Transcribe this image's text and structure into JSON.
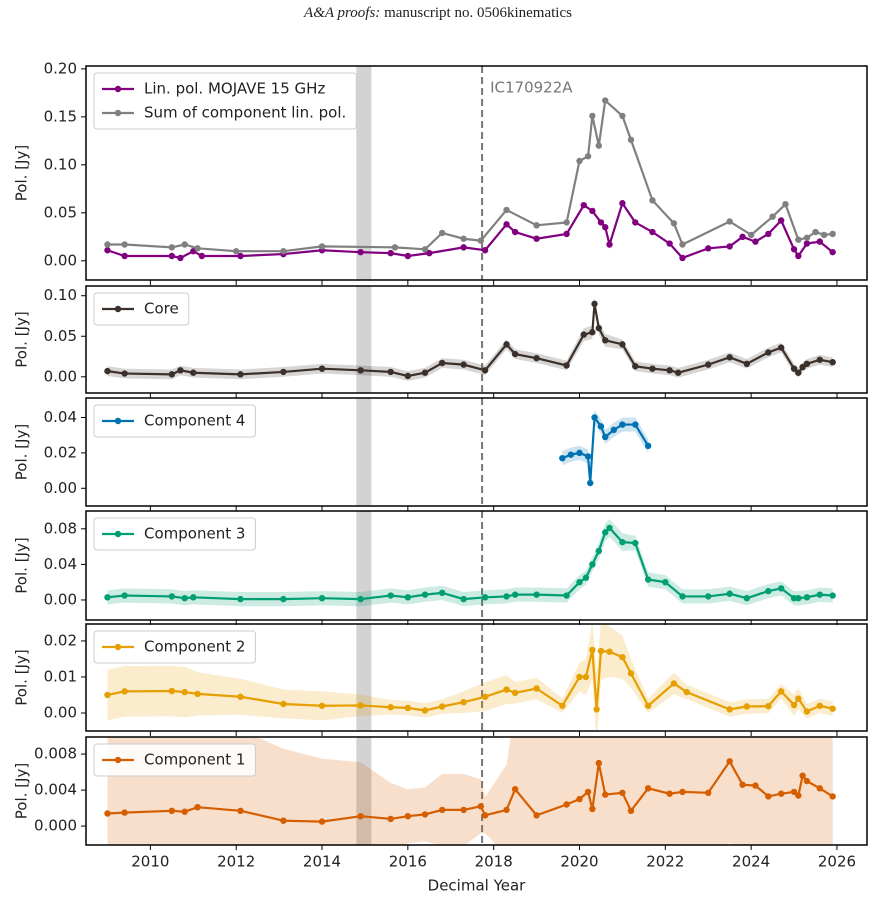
{
  "header": {
    "journal": "A&A proofs:",
    "text": "manuscript no. 0506kinematics"
  },
  "x_axis": {
    "label": "Decimal Year",
    "xlim": [
      2008.5,
      2026.7
    ],
    "xticks": [
      2010,
      2012,
      2014,
      2016,
      2018,
      2020,
      2022,
      2024,
      2026
    ],
    "span": [
      2014.8,
      2015.15
    ],
    "span_color": "#d3d3d3",
    "event": {
      "x": 2017.73,
      "label": "IC170922A",
      "color": "#777777"
    }
  },
  "chart_data": [
    {
      "type": "line",
      "ylabel": "Pol. [Jy]",
      "ylim": [
        -0.02,
        0.203
      ],
      "legend": "upper left",
      "yticks": [
        {
          "value": 0,
          "label": "0.00"
        },
        {
          "value": 0.05,
          "label": "0.05"
        },
        {
          "value": 0.1,
          "label": "0.10"
        },
        {
          "value": 0.15,
          "label": "0.15"
        },
        {
          "value": 0.2,
          "label": "0.20"
        }
      ],
      "series": [
        {
          "name": "Lin. pol. MOJAVE 15 GHz",
          "color": "#800080",
          "x": [
            2009.0,
            2009.4,
            2010.5,
            2010.7,
            2011.0,
            2011.2,
            2012.1,
            2013.1,
            2014.0,
            2014.9,
            2015.6,
            2016.0,
            2016.5,
            2017.3,
            2017.8,
            2018.3,
            2018.5,
            2019.0,
            2019.7,
            2020.1,
            2020.3,
            2020.5,
            2020.6,
            2020.7,
            2021.0,
            2021.3,
            2021.7,
            2022.1,
            2022.4,
            2023.0,
            2023.5,
            2023.8,
            2024.1,
            2024.4,
            2024.7,
            2025.0,
            2025.1,
            2025.3,
            2025.6,
            2025.9
          ],
          "values": [
            0.011,
            0.005,
            0.005,
            0.003,
            0.01,
            0.005,
            0.005,
            0.007,
            0.011,
            0.009,
            0.008,
            0.005,
            0.008,
            0.014,
            0.011,
            0.038,
            0.03,
            0.023,
            0.028,
            0.058,
            0.052,
            0.04,
            0.035,
            0.017,
            0.06,
            0.04,
            0.03,
            0.018,
            0.003,
            0.013,
            0.015,
            0.025,
            0.02,
            0.028,
            0.042,
            0.012,
            0.005,
            0.018,
            0.02,
            0.009
          ]
        },
        {
          "name": "Sum of component lin. pol.",
          "color": "#808080",
          "x": [
            2009.0,
            2009.4,
            2010.5,
            2010.8,
            2011.1,
            2012.0,
            2013.1,
            2014.0,
            2015.7,
            2016.4,
            2016.8,
            2017.3,
            2017.7,
            2018.3,
            2019.0,
            2019.7,
            2020.0,
            2020.2,
            2020.3,
            2020.45,
            2020.6,
            2021.0,
            2021.2,
            2021.7,
            2022.2,
            2022.4,
            2023.5,
            2024.0,
            2024.5,
            2024.8,
            2025.1,
            2025.3,
            2025.5,
            2025.7,
            2025.9
          ],
          "values": [
            0.017,
            0.017,
            0.014,
            0.017,
            0.013,
            0.01,
            0.01,
            0.015,
            0.014,
            0.012,
            0.029,
            0.023,
            0.021,
            0.053,
            0.037,
            0.04,
            0.104,
            0.109,
            0.151,
            0.12,
            0.167,
            0.151,
            0.126,
            0.063,
            0.039,
            0.017,
            0.041,
            0.027,
            0.046,
            0.059,
            0.022,
            0.024,
            0.03,
            0.027,
            0.028
          ]
        }
      ]
    },
    {
      "type": "line",
      "ylabel": "Pol. [Jy]",
      "ylim": [
        -0.02,
        0.112
      ],
      "legend": "upper left",
      "yticks": [
        {
          "value": 0,
          "label": "0.00"
        },
        {
          "value": 0.05,
          "label": "0.05"
        },
        {
          "value": 0.1,
          "label": "0.10"
        }
      ],
      "series": [
        {
          "name": "Core",
          "color": "#3b302a",
          "band": true,
          "x": [
            2009.0,
            2009.4,
            2010.5,
            2010.7,
            2011.0,
            2012.1,
            2013.1,
            2014.0,
            2014.9,
            2015.6,
            2016.0,
            2016.4,
            2016.8,
            2017.3,
            2017.8,
            2018.3,
            2018.5,
            2019.0,
            2019.7,
            2020.1,
            2020.3,
            2020.35,
            2020.45,
            2020.6,
            2021.0,
            2021.3,
            2021.7,
            2022.1,
            2022.3,
            2023.0,
            2023.5,
            2023.9,
            2024.4,
            2024.7,
            2025.0,
            2025.1,
            2025.2,
            2025.3,
            2025.6,
            2025.9
          ],
          "values": [
            0.007,
            0.004,
            0.003,
            0.008,
            0.005,
            0.003,
            0.006,
            0.01,
            0.008,
            0.006,
            0.001,
            0.005,
            0.017,
            0.015,
            0.008,
            0.04,
            0.028,
            0.023,
            0.014,
            0.052,
            0.055,
            0.09,
            0.06,
            0.045,
            0.04,
            0.013,
            0.01,
            0.008,
            0.005,
            0.015,
            0.024,
            0.016,
            0.03,
            0.036,
            0.01,
            0.005,
            0.012,
            0.016,
            0.021,
            0.018
          ],
          "errors": [
            0.006,
            0.006,
            0.006,
            0.006,
            0.006,
            0.006,
            0.006,
            0.006,
            0.006,
            0.006,
            0.006,
            0.006,
            0.006,
            0.006,
            0.006,
            0.006,
            0.006,
            0.006,
            0.006,
            0.008,
            0.008,
            0.008,
            0.008,
            0.008,
            0.006,
            0.006,
            0.006,
            0.006,
            0.006,
            0.006,
            0.006,
            0.006,
            0.006,
            0.006,
            0.006,
            0.006,
            0.006,
            0.006,
            0.006,
            0.006
          ]
        }
      ]
    },
    {
      "type": "line",
      "ylabel": "Pol. [Jy]",
      "ylim": [
        -0.01,
        0.051
      ],
      "legend": "upper left",
      "yticks": [
        {
          "value": 0,
          "label": "0.00"
        },
        {
          "value": 0.02,
          "label": "0.02"
        },
        {
          "value": 0.04,
          "label": "0.04"
        }
      ],
      "series": [
        {
          "name": "Component 4",
          "color": "#0072b2",
          "band": true,
          "x": [
            2019.6,
            2019.8,
            2020.0,
            2020.2,
            2020.25,
            2020.35,
            2020.5,
            2020.6,
            2020.8,
            2021.0,
            2021.3,
            2021.6
          ],
          "values": [
            0.017,
            0.019,
            0.02,
            0.018,
            0.003,
            0.04,
            0.035,
            0.029,
            0.033,
            0.036,
            0.036,
            0.024
          ],
          "errors": [
            0.004,
            0.004,
            0.004,
            0.004,
            0.004,
            0.004,
            0.004,
            0.004,
            0.004,
            0.004,
            0.004,
            0.004
          ]
        }
      ]
    },
    {
      "type": "line",
      "ylabel": "Pol. [Jy]",
      "ylim": [
        -0.0225,
        0.1
      ],
      "legend": "upper left",
      "yticks": [
        {
          "value": 0,
          "label": "0.00"
        },
        {
          "value": 0.04,
          "label": "0.04"
        },
        {
          "value": 0.08,
          "label": "0.08"
        }
      ],
      "series": [
        {
          "name": "Component 3",
          "color": "#009e73",
          "band": true,
          "x": [
            2009.0,
            2009.4,
            2010.5,
            2010.8,
            2011.0,
            2012.1,
            2013.1,
            2014.0,
            2014.9,
            2015.6,
            2016.0,
            2016.4,
            2016.8,
            2017.3,
            2017.8,
            2018.3,
            2018.5,
            2019.0,
            2019.7,
            2020.0,
            2020.15,
            2020.3,
            2020.45,
            2020.6,
            2020.7,
            2021.0,
            2021.3,
            2021.6,
            2022.0,
            2022.4,
            2023.0,
            2023.5,
            2023.9,
            2024.4,
            2024.7,
            2025.0,
            2025.1,
            2025.3,
            2025.6,
            2025.9
          ],
          "values": [
            0.003,
            0.005,
            0.004,
            0.002,
            0.003,
            0.001,
            0.001,
            0.002,
            0.001,
            0.005,
            0.003,
            0.006,
            0.008,
            0.001,
            0.003,
            0.004,
            0.006,
            0.006,
            0.005,
            0.02,
            0.025,
            0.04,
            0.055,
            0.076,
            0.081,
            0.065,
            0.064,
            0.023,
            0.02,
            0.004,
            0.004,
            0.007,
            0.002,
            0.01,
            0.013,
            0.002,
            0.002,
            0.003,
            0.006,
            0.005
          ],
          "errors": [
            0.008,
            0.008,
            0.008,
            0.008,
            0.008,
            0.008,
            0.008,
            0.008,
            0.008,
            0.008,
            0.008,
            0.008,
            0.008,
            0.008,
            0.008,
            0.008,
            0.008,
            0.008,
            0.008,
            0.008,
            0.008,
            0.008,
            0.009,
            0.01,
            0.01,
            0.01,
            0.008,
            0.008,
            0.008,
            0.008,
            0.008,
            0.008,
            0.008,
            0.008,
            0.008,
            0.008,
            0.008,
            0.008,
            0.008,
            0.008
          ]
        }
      ]
    },
    {
      "type": "line",
      "ylabel": "Pol. [Jy]",
      "ylim": [
        -0.005,
        0.0247
      ],
      "legend": "upper left",
      "yticks": [
        {
          "value": 0,
          "label": "0.00"
        },
        {
          "value": 0.01,
          "label": "0.01"
        },
        {
          "value": 0.02,
          "label": "0.02"
        }
      ],
      "series": [
        {
          "name": "Component 2",
          "color": "#e69f00",
          "band": true,
          "x": [
            2009.0,
            2009.4,
            2010.5,
            2010.8,
            2011.1,
            2012.1,
            2013.1,
            2014.0,
            2014.9,
            2015.6,
            2016.0,
            2016.4,
            2016.8,
            2017.3,
            2017.8,
            2018.3,
            2018.5,
            2019.0,
            2019.6,
            2020.0,
            2020.15,
            2020.3,
            2020.4,
            2020.5,
            2020.7,
            2021.0,
            2021.2,
            2021.6,
            2022.2,
            2022.5,
            2023.5,
            2023.9,
            2024.4,
            2024.7,
            2025.0,
            2025.1,
            2025.3,
            2025.6,
            2025.9
          ],
          "values": [
            0.005,
            0.006,
            0.0061,
            0.0058,
            0.0053,
            0.0045,
            0.0025,
            0.002,
            0.0021,
            0.0016,
            0.0014,
            0.0007,
            0.0018,
            0.003,
            0.0045,
            0.0065,
            0.0056,
            0.0068,
            0.002,
            0.01,
            0.01,
            0.0175,
            0.001,
            0.0172,
            0.017,
            0.0155,
            0.011,
            0.002,
            0.0082,
            0.0058,
            0.001,
            0.0018,
            0.0019,
            0.006,
            0.0022,
            0.004,
            0.0004,
            0.002,
            0.0012
          ],
          "errors": [
            0.007,
            0.007,
            0.007,
            0.007,
            0.006,
            0.005,
            0.004,
            0.004,
            0.003,
            0.002,
            0.002,
            0.002,
            0.002,
            0.003,
            0.004,
            0.004,
            0.003,
            0.003,
            0.002,
            0.004,
            0.005,
            0.008,
            0.01,
            0.008,
            0.007,
            0.006,
            0.004,
            0.002,
            0.003,
            0.002,
            0.002,
            0.002,
            0.002,
            0.002,
            0.003,
            0.003,
            0.002,
            0.002,
            0.002
          ]
        }
      ]
    },
    {
      "type": "line",
      "ylabel": "Pol. [Jy]",
      "ylim": [
        -0.0021,
        0.0099
      ],
      "legend": "upper left",
      "yticks": [
        {
          "value": 0,
          "label": "0.000"
        },
        {
          "value": 0.004,
          "label": "0.004"
        },
        {
          "value": 0.008,
          "label": "0.008"
        }
      ],
      "series": [
        {
          "name": "Component 1",
          "color": "#d55e00",
          "band": true,
          "x": [
            2009.0,
            2009.4,
            2010.5,
            2010.8,
            2011.1,
            2012.1,
            2013.1,
            2014.0,
            2014.9,
            2015.6,
            2016.0,
            2016.4,
            2016.8,
            2017.3,
            2017.7,
            2017.8,
            2018.3,
            2018.5,
            2019.0,
            2019.7,
            2020.0,
            2020.2,
            2020.3,
            2020.45,
            2020.6,
            2021.0,
            2021.2,
            2021.6,
            2022.1,
            2022.4,
            2023.0,
            2023.5,
            2023.8,
            2024.1,
            2024.4,
            2024.7,
            2025.0,
            2025.1,
            2025.2,
            2025.3,
            2025.6,
            2025.9
          ],
          "values": [
            0.0014,
            0.0015,
            0.0017,
            0.0016,
            0.0021,
            0.0017,
            0.0006,
            0.0005,
            0.0011,
            0.0008,
            0.0011,
            0.0013,
            0.0018,
            0.0018,
            0.0022,
            0.0012,
            0.0018,
            0.0041,
            0.0012,
            0.0024,
            0.003,
            0.0038,
            0.0019,
            0.007,
            0.0035,
            0.0037,
            0.0017,
            0.0042,
            0.0036,
            0.0038,
            0.0037,
            0.0072,
            0.0046,
            0.0045,
            0.0033,
            0.0036,
            0.0038,
            0.0034,
            0.0056,
            0.005,
            0.0042,
            0.0033
          ],
          "errors": [
            0.009,
            0.009,
            0.009,
            0.009,
            0.009,
            0.009,
            0.008,
            0.007,
            0.006,
            0.004,
            0.003,
            0.003,
            0.004,
            0.004,
            0.003,
            0.002,
            0.005,
            0.009,
            0.009,
            0.009,
            0.009,
            0.009,
            0.009,
            0.009,
            0.009,
            0.009,
            0.009,
            0.009,
            0.009,
            0.009,
            0.009,
            0.009,
            0.009,
            0.009,
            0.009,
            0.009,
            0.009,
            0.009,
            0.009,
            0.009,
            0.009,
            0.009
          ]
        }
      ]
    }
  ]
}
